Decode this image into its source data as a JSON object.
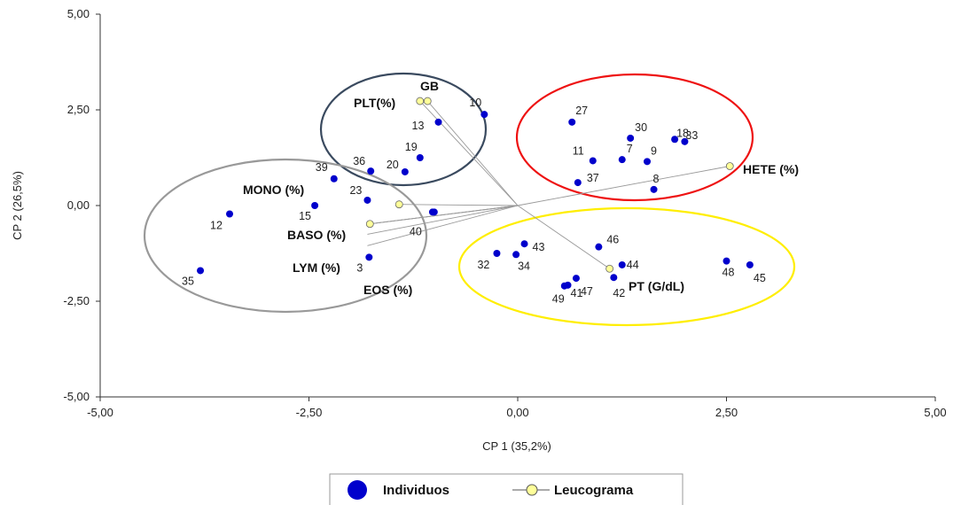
{
  "chart_data": {
    "type": "scatter",
    "xlabel": "CP 1 (35,2%)",
    "ylabel": "CP 2 (26,5%)",
    "xlim": [
      -5,
      5
    ],
    "ylim": [
      -5,
      5
    ],
    "x_ticks": [
      "-5,00",
      "-2,50",
      "0,00",
      "2,50",
      "5,00"
    ],
    "y_ticks": [
      "5,00",
      "2,50",
      "0,00",
      "-2,50",
      "-5,00"
    ],
    "colors": {
      "individuos": "#0000CC",
      "leucograma": "#FFFF99",
      "loading_lines": "#999999"
    },
    "series": [
      {
        "name": "Individuos",
        "points": [
          {
            "label": "10",
            "x": -0.4,
            "y": 2.38
          },
          {
            "label": "13",
            "x": -0.95,
            "y": 2.18
          },
          {
            "label": "19",
            "x": -1.17,
            "y": 1.25
          },
          {
            "label": "20",
            "x": -1.35,
            "y": 0.88
          },
          {
            "label": "36",
            "x": -1.76,
            "y": 0.9
          },
          {
            "label": "39",
            "x": -2.2,
            "y": 0.7
          },
          {
            "label": "23",
            "x": -1.8,
            "y": 0.14
          },
          {
            "label": "",
            "x": -1.0,
            "y": -0.17
          },
          {
            "label": "40",
            "x": -1.02,
            "y": -0.17
          },
          {
            "label": "15",
            "x": -2.43,
            "y": 0.0
          },
          {
            "label": "12",
            "x": -3.45,
            "y": -0.22
          },
          {
            "label": "3",
            "x": -1.78,
            "y": -1.35
          },
          {
            "label": "35",
            "x": -3.8,
            "y": -1.7
          },
          {
            "label": "27",
            "x": 0.65,
            "y": 2.18
          },
          {
            "label": "30",
            "x": 1.35,
            "y": 1.76
          },
          {
            "label": "7",
            "x": 1.25,
            "y": 1.2
          },
          {
            "label": "11",
            "x": 0.9,
            "y": 1.17
          },
          {
            "label": "9",
            "x": 1.55,
            "y": 1.15
          },
          {
            "label": "18",
            "x": 1.88,
            "y": 1.73
          },
          {
            "label": "33",
            "x": 2.0,
            "y": 1.67
          },
          {
            "label": "37",
            "x": 0.72,
            "y": 0.6
          },
          {
            "label": "8",
            "x": 1.63,
            "y": 0.42
          },
          {
            "label": "46",
            "x": 0.97,
            "y": -1.08
          },
          {
            "label": "43",
            "x": 0.08,
            "y": -1.0
          },
          {
            "label": "32",
            "x": -0.25,
            "y": -1.25
          },
          {
            "label": "34",
            "x": -0.02,
            "y": -1.28
          },
          {
            "label": "44",
            "x": 1.25,
            "y": -1.55
          },
          {
            "label": "47",
            "x": 0.7,
            "y": -1.9
          },
          {
            "label": "41",
            "x": 0.6,
            "y": -2.08
          },
          {
            "label": "49",
            "x": 0.56,
            "y": -2.1
          },
          {
            "label": "42",
            "x": 1.15,
            "y": -1.88
          },
          {
            "label": "48",
            "x": 2.5,
            "y": -1.45
          },
          {
            "label": "45",
            "x": 2.78,
            "y": -1.55
          }
        ]
      },
      {
        "name": "Leucograma",
        "points": [
          {
            "label": "GB",
            "x": -1.08,
            "y": 2.73
          },
          {
            "label": "PLT(%)",
            "x": -1.17,
            "y": 2.73
          },
          {
            "label": "HETE (%)",
            "x": 2.54,
            "y": 1.03
          },
          {
            "label": "MONO (%)",
            "x": -1.42,
            "y": 0.03
          },
          {
            "label": "BASO (%)",
            "x": -1.77,
            "y": -0.48
          },
          {
            "label": "LYM (%)",
            "x": -1.77,
            "y": -0.48
          },
          {
            "label": "EOS (%)",
            "x": -1.77,
            "y": -0.48
          },
          {
            "label": "PT (G/dL)",
            "x": 1.1,
            "y": -1.65
          }
        ]
      }
    ],
    "legend": {
      "position": "bottom-center",
      "items": [
        "Individuos",
        "Leucograma"
      ]
    },
    "groups": [
      {
        "name": "top-left",
        "color": "#3a4a5f"
      },
      {
        "name": "left",
        "color": "#999999"
      },
      {
        "name": "top-right",
        "color": "#ee1111"
      },
      {
        "name": "bottom-right",
        "color": "#ffee00"
      }
    ],
    "grid": false
  }
}
